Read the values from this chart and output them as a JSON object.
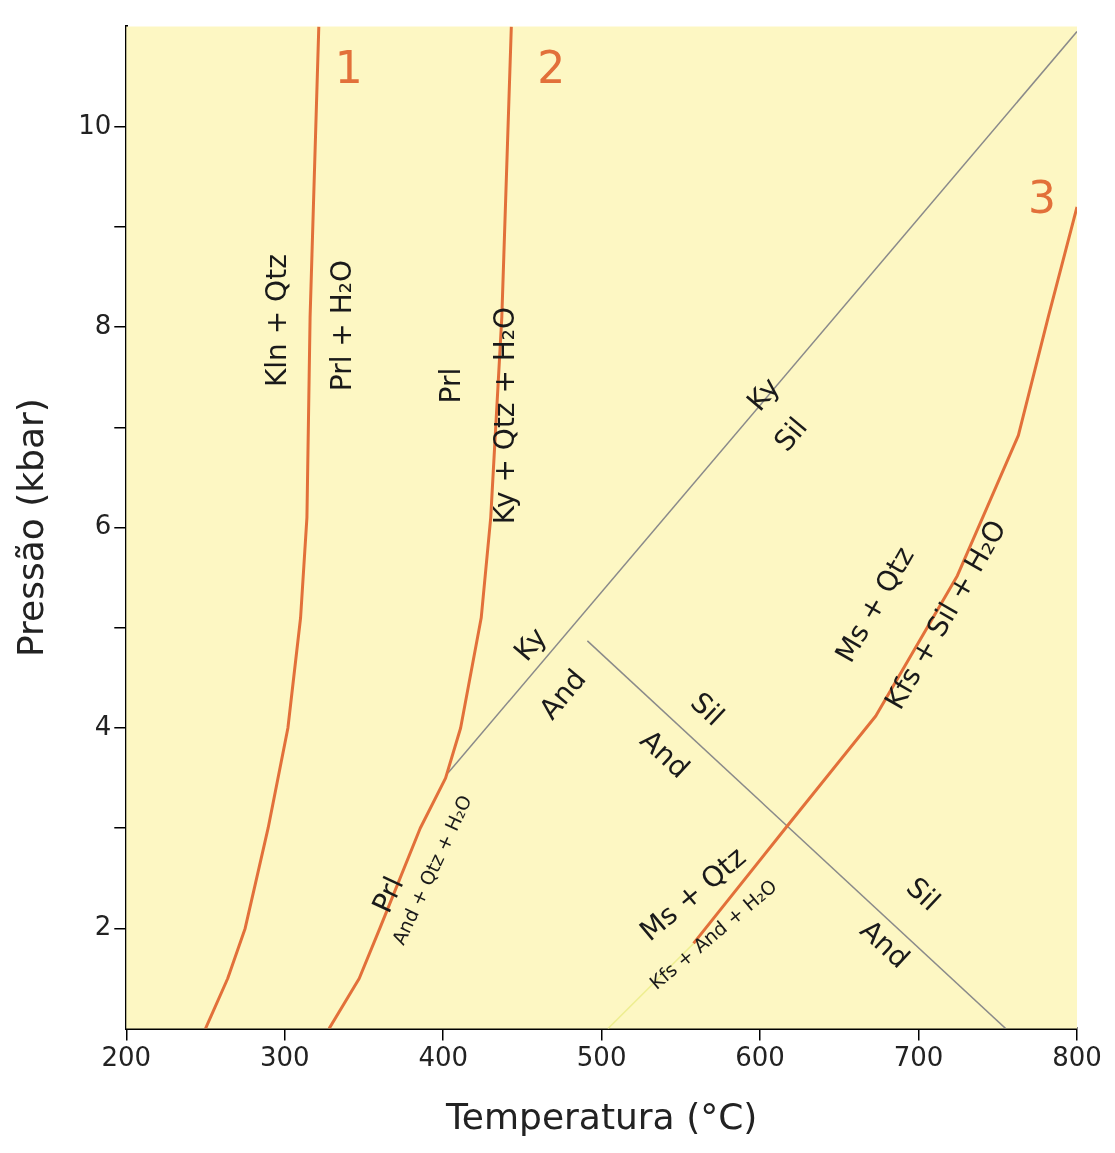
{
  "chart_data": {
    "type": "line",
    "xlabel": "Temperatura (°C)",
    "ylabel": "Pressão (kbar)",
    "xlim": [
      200,
      800
    ],
    "ylim": [
      1,
      11
    ],
    "xticks": [
      200,
      300,
      400,
      500,
      600,
      700,
      800
    ],
    "yticks": [
      2,
      {
        "value": 3,
        "label": null
      },
      4,
      {
        "value": 5,
        "label": null
      },
      6,
      {
        "value": 7,
        "label": null
      },
      8,
      {
        "value": 9,
        "label": null
      },
      10
    ],
    "grid": false,
    "legend": false,
    "marker": "none",
    "line_style": "solid",
    "series": [
      {
        "name": "1",
        "color": "#e2703a",
        "x": [
          250,
          264,
          275,
          289.5,
          302,
          310,
          314,
          316,
          321.5
        ],
        "values": [
          1,
          1.5,
          2,
          3,
          4,
          5.1,
          6.1,
          8.1,
          11
        ]
      },
      {
        "name": "2",
        "color": "#e2703a",
        "x": [
          328,
          347,
          360,
          385.5,
          401.5,
          411,
          424,
          430,
          437,
          443
        ],
        "values": [
          1,
          1.5,
          2,
          3,
          3.5,
          4,
          5.1,
          6.1,
          8.1,
          11
        ]
      },
      {
        "name": "3",
        "color": "#e2703a",
        "x": [
          558,
          616,
          673,
          724.5,
          763,
          782,
          800
        ],
        "values": [
          1.85,
          3,
          4.12,
          5.52,
          6.92,
          8.11,
          9.2
        ]
      },
      {
        "color": "#8a8a8a",
        "x": [
          403,
          800
        ],
        "values": [
          3.55,
          10.95
        ]
      },
      {
        "color": "#8a8a8a",
        "x": [
          491,
          755
        ],
        "values": [
          4.87,
          1
        ]
      },
      {
        "color": "#eeee90",
        "x": [
          504,
          558
        ],
        "values": [
          1,
          1.85
        ]
      }
    ],
    "annotations": [
      "Kln + Qtz",
      "Prl + H₂O",
      "Prl",
      "Ky + Qtz + H₂O",
      "Ky",
      "And",
      "Ky",
      "Sil",
      "Sil",
      "And",
      "Sil",
      "And",
      "Prl",
      "And + Qtz + H₂O",
      "Ms + Qtz",
      "Kfs + Sil + H₂O",
      "Ms + Qtz",
      "Kfs + And + H₂O"
    ]
  }
}
